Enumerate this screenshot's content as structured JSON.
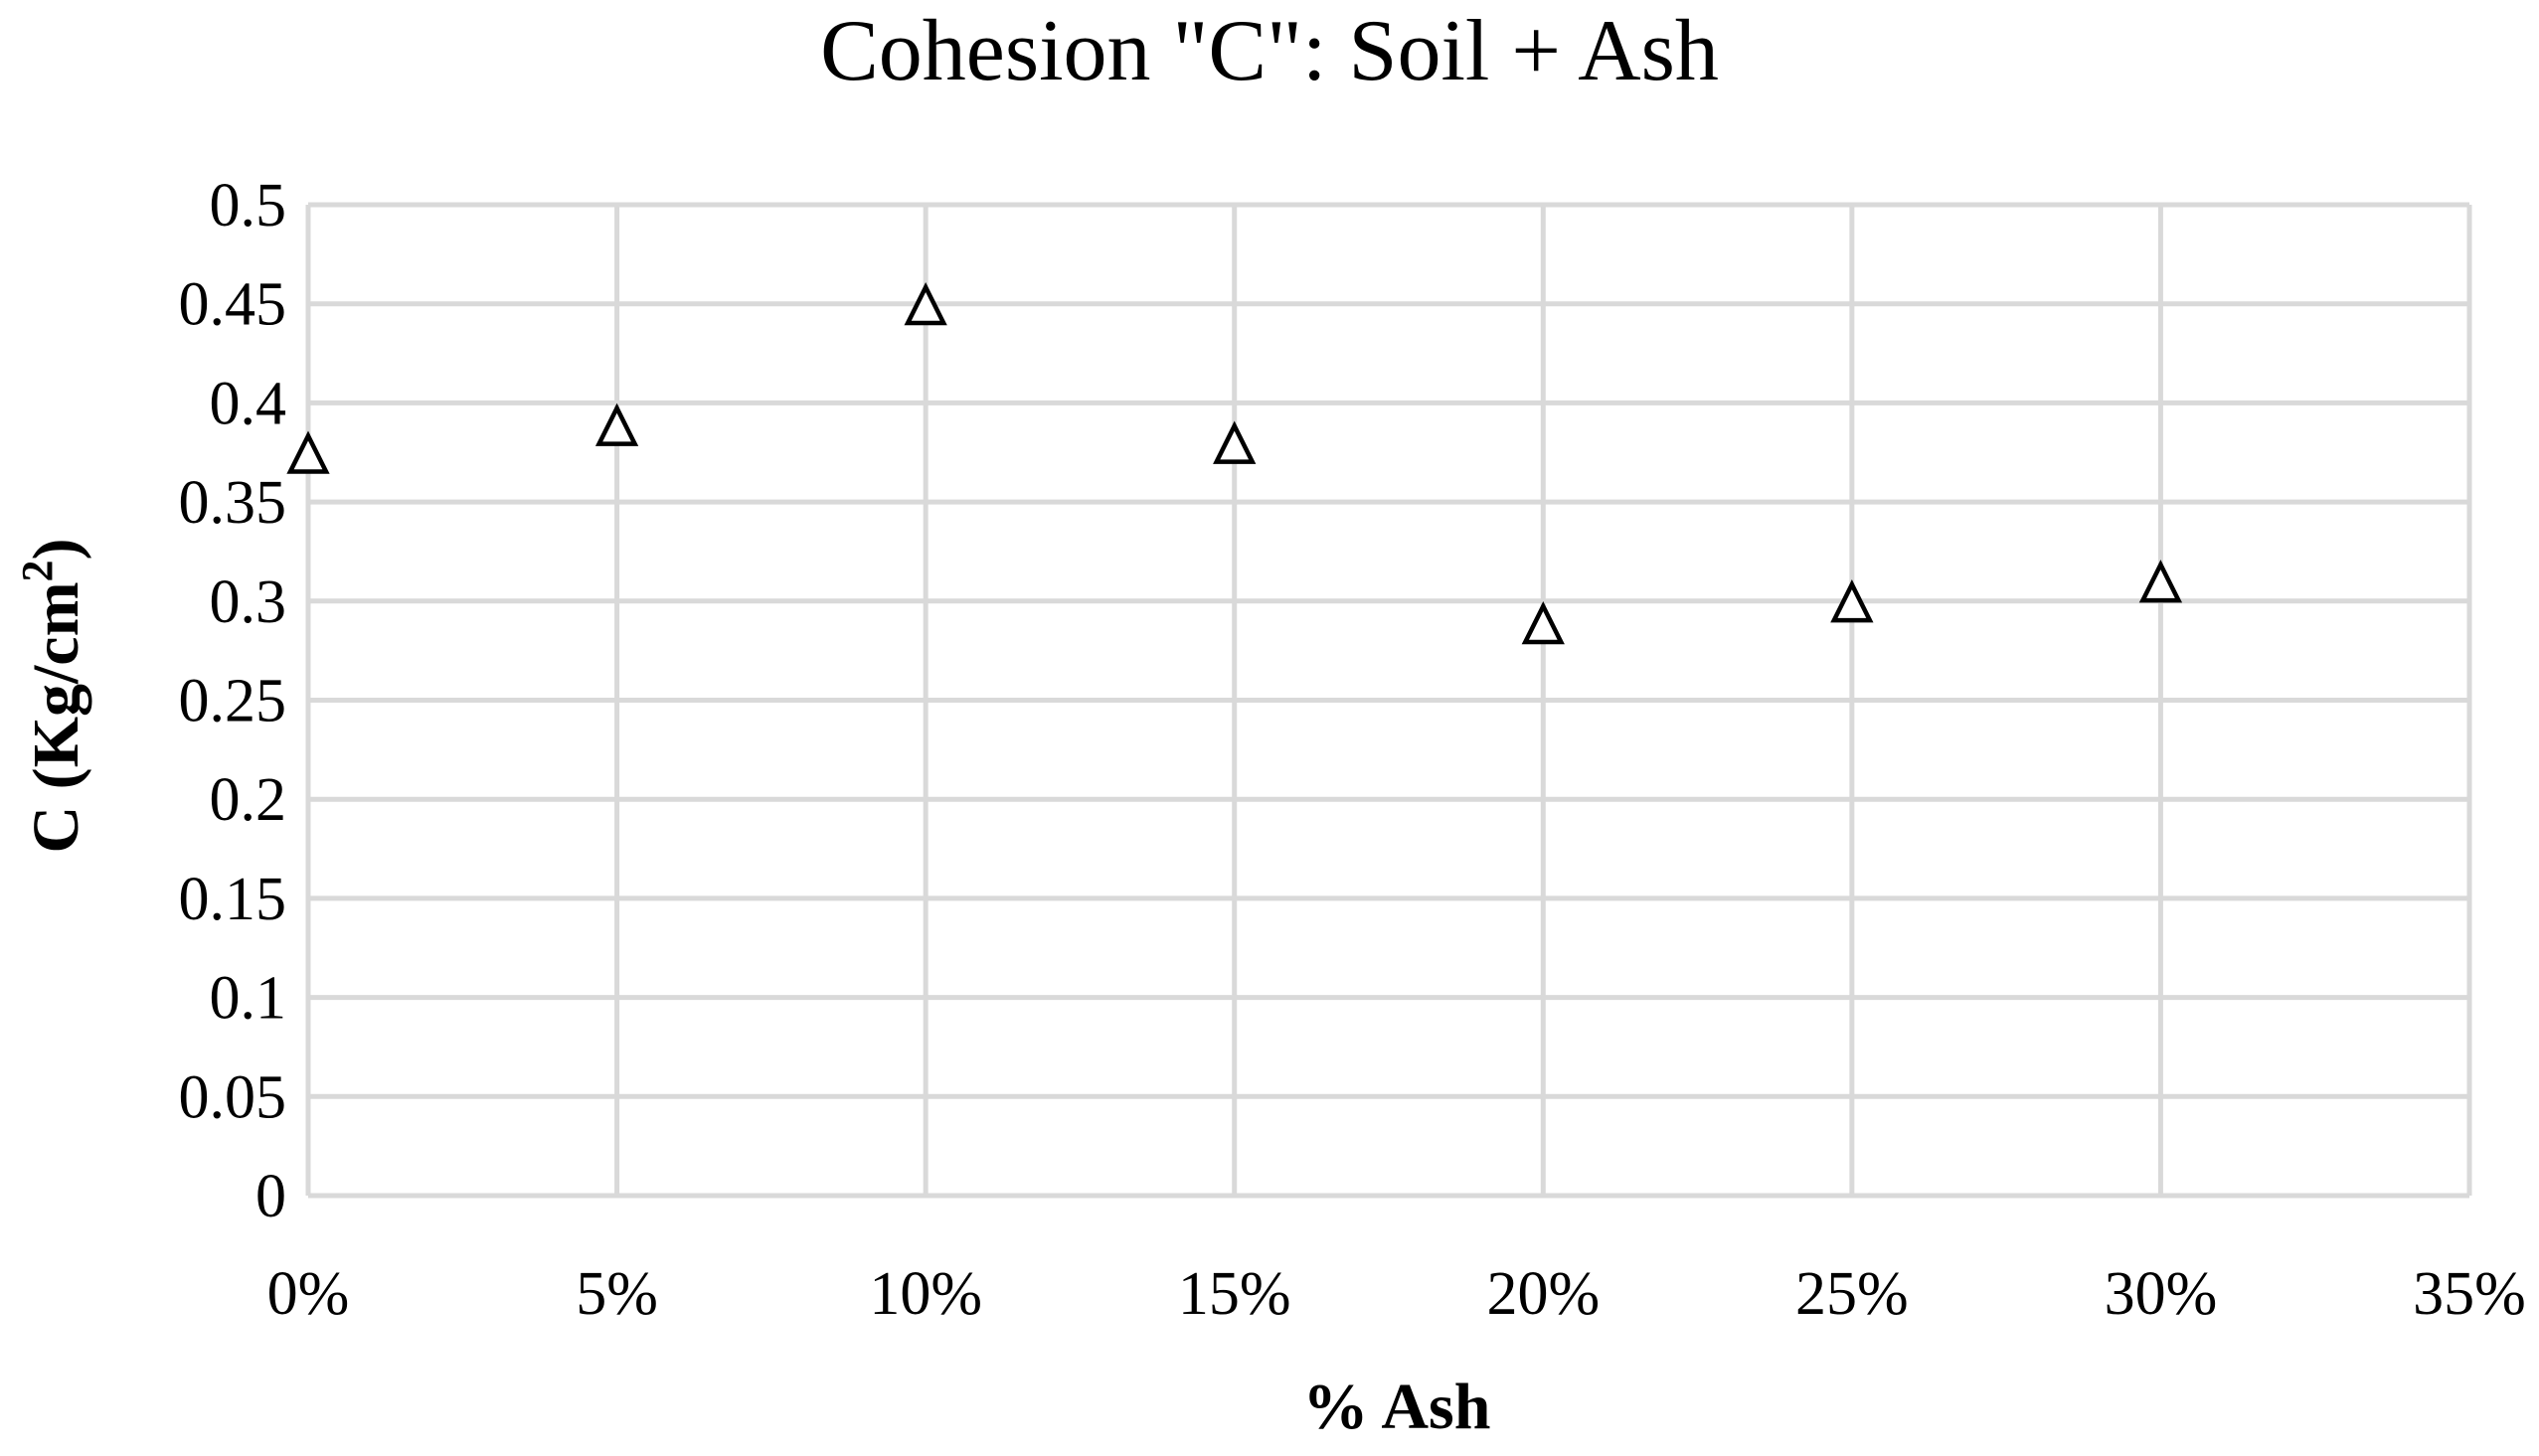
{
  "chart_data": {
    "type": "scatter",
    "title": "Cohesion \"C\": Soil + Ash",
    "xlabel": "% Ash",
    "ylabel_main": "C (Kg/cm",
    "ylabel_sup": "2",
    "ylabel_close": ")",
    "xlim": [
      0,
      35
    ],
    "ylim": [
      0,
      0.5
    ],
    "x_ticks": [
      0,
      5,
      10,
      15,
      20,
      25,
      30,
      35
    ],
    "x_tick_labels": [
      "0%",
      "5%",
      "10%",
      "15%",
      "20%",
      "25%",
      "30%",
      "35%"
    ],
    "y_ticks": [
      0,
      0.05,
      0.1,
      0.15,
      0.2,
      0.25,
      0.3,
      0.35,
      0.4,
      0.45,
      0.5
    ],
    "y_tick_labels": [
      "0",
      "0.05",
      "0.1",
      "0.15",
      "0.2",
      "0.25",
      "0.3",
      "0.35",
      "0.4",
      "0.45",
      "0.5"
    ],
    "grid": true,
    "legend": "none",
    "marker": "open-triangle",
    "marker_color": "#000000",
    "grid_color": "#d9d9d9",
    "series": [
      {
        "x": [
          0,
          5,
          10,
          15,
          20,
          25,
          30
        ],
        "y": [
          0.373,
          0.387,
          0.448,
          0.378,
          0.287,
          0.298,
          0.308
        ]
      }
    ]
  }
}
